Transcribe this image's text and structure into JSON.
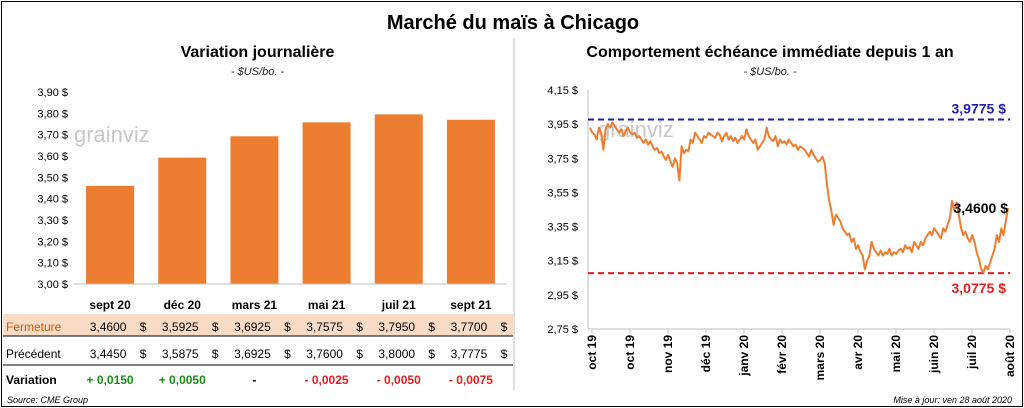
{
  "title": "Marché du maïs à Chicago",
  "colors": {
    "bar": "#ED7D31",
    "line": "#ED7D31",
    "high": "#1F1FA8",
    "low": "#E01F1F",
    "fermeture_bg": "#FADBC6",
    "positive": "#1A8C1A",
    "negative": "#E01F1F"
  },
  "watermark": "grainviz",
  "footer": {
    "source": "Source: CME Group",
    "updated": "Mise à jour: ven 28 août 2020"
  },
  "chart_data": [
    {
      "type": "bar",
      "title": "Variation journalière",
      "subtitle": "- $US/bo. -",
      "categories": [
        "sept 20",
        "déc 20",
        "mars 21",
        "mai 21",
        "juil 21",
        "sept 21"
      ],
      "values": [
        3.46,
        3.5925,
        3.6925,
        3.7575,
        3.795,
        3.77
      ],
      "ylim": [
        3.0,
        3.9
      ],
      "yticks": [
        "3,00 $",
        "3,10 $",
        "3,20 $",
        "3,30 $",
        "3,40 $",
        "3,50 $",
        "3,60 $",
        "3,70 $",
        "3,80 $",
        "3,90 $"
      ],
      "table": {
        "rows": [
          {
            "label": "Fermeture",
            "values": [
              "3,4600",
              "3,5925",
              "3,6925",
              "3,7575",
              "3,7950",
              "3,7700"
            ],
            "suffix": "$"
          },
          {
            "label": "Précédent",
            "values": [
              "3,4450",
              "3,5875",
              "3,6925",
              "3,7600",
              "3,8000",
              "3,7775"
            ],
            "suffix": "$"
          },
          {
            "label": "Variation",
            "values": [
              "+ 0,0150",
              "+ 0,0050",
              "-",
              "- 0,0025",
              "- 0,0050",
              "- 0,0075"
            ],
            "signs": [
              1,
              1,
              0,
              -1,
              -1,
              -1
            ]
          }
        ]
      }
    },
    {
      "type": "line",
      "title": "Comportement  échéance immédiate depuis 1 an",
      "subtitle": "- $US/bo. -",
      "ylim": [
        2.75,
        4.15
      ],
      "yticks": [
        "2,75 $",
        "2,95 $",
        "3,15 $",
        "3,35 $",
        "3,55 $",
        "3,75 $",
        "3,95 $",
        "4,15 $"
      ],
      "xticks": [
        "oct 19",
        "oct 19",
        "nov 19",
        "déc 19",
        "janv 20",
        "févr 20",
        "mars 20",
        "avr 20",
        "mai 20",
        "juin 20",
        "juil 20",
        "août 20"
      ],
      "high": {
        "value": 3.9775,
        "label": "3,9775 $"
      },
      "low": {
        "value": 3.0775,
        "label": "3,0775 $"
      },
      "last": {
        "value": 3.46,
        "label": "3,4600 $"
      },
      "series": [
        {
          "values": [
            3.93,
            3.9,
            3.89,
            3.86,
            3.93,
            3.9,
            3.8,
            3.92,
            3.95,
            3.93,
            3.96,
            3.94,
            3.92,
            3.9,
            3.92,
            3.88,
            3.91,
            3.93,
            3.9,
            3.89,
            3.9,
            3.87,
            3.88,
            3.86,
            3.84,
            3.86,
            3.83,
            3.85,
            3.82,
            3.8,
            3.81,
            3.78,
            3.79,
            3.76,
            3.74,
            3.77,
            3.73,
            3.7,
            3.75,
            3.72,
            3.62,
            3.82,
            3.78,
            3.8,
            3.79,
            3.86,
            3.84,
            3.9,
            3.88,
            3.86,
            3.84,
            3.88,
            3.87,
            3.9,
            3.89,
            3.88,
            3.87,
            3.9,
            3.89,
            3.85,
            3.88,
            3.9,
            3.86,
            3.88,
            3.85,
            3.87,
            3.84,
            3.86,
            3.88,
            3.86,
            3.92,
            3.88,
            3.86,
            3.84,
            3.86,
            3.8,
            3.82,
            3.84,
            3.86,
            3.93,
            3.88,
            3.86,
            3.85,
            3.88,
            3.82,
            3.86,
            3.84,
            3.85,
            3.83,
            3.86,
            3.84,
            3.82,
            3.83,
            3.8,
            3.82,
            3.81,
            3.8,
            3.78,
            3.76,
            3.8,
            3.77,
            3.75,
            3.73,
            3.74,
            3.76,
            3.72,
            3.6,
            3.5,
            3.44,
            3.36,
            3.42,
            3.4,
            3.38,
            3.34,
            3.32,
            3.3,
            3.31,
            3.26,
            3.28,
            3.22,
            3.24,
            3.2,
            3.18,
            3.1,
            3.15,
            3.18,
            3.26,
            3.22,
            3.2,
            3.18,
            3.21,
            3.18,
            3.2,
            3.19,
            3.22,
            3.18,
            3.2,
            3.19,
            3.21,
            3.22,
            3.2,
            3.24,
            3.22,
            3.23,
            3.2,
            3.26,
            3.24,
            3.22,
            3.26,
            3.24,
            3.28,
            3.3,
            3.32,
            3.3,
            3.34,
            3.32,
            3.3,
            3.28,
            3.34,
            3.32,
            3.36,
            3.4,
            3.5,
            3.44,
            3.49,
            3.42,
            3.34,
            3.3,
            3.32,
            3.28,
            3.26,
            3.3,
            3.26,
            3.2,
            3.16,
            3.1,
            3.08,
            3.12,
            3.1,
            3.14,
            3.18,
            3.22,
            3.3,
            3.26,
            3.34,
            3.3,
            3.38,
            3.46
          ]
        }
      ]
    }
  ]
}
